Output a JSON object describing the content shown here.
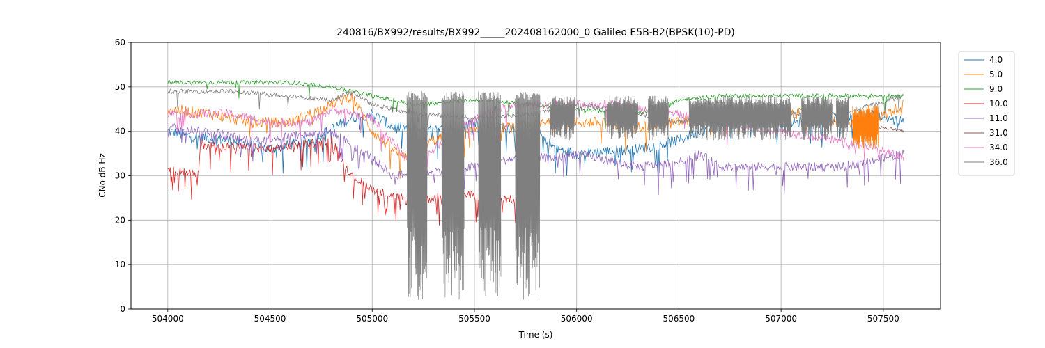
{
  "chart_data": {
    "type": "line",
    "title": "240816/BX992/results/BX992_____202408162000_0 Galileo E5B-B2(BPSK(10)-PD)",
    "xlabel": "Time (s)",
    "ylabel": "CNo dB Hz",
    "xlim": [
      503820,
      507780
    ],
    "ylim": [
      0,
      60
    ],
    "xticks": [
      504000,
      504500,
      505000,
      505500,
      506000,
      506500,
      507000,
      507500
    ],
    "yticks": [
      0,
      10,
      20,
      30,
      40,
      50,
      60
    ],
    "grid": true,
    "legend_position": "upper-right-outside",
    "series": [
      {
        "name": "4.0",
        "color": "#1f77b4",
        "base": [
          [
            504000,
            40
          ],
          [
            504100,
            39
          ],
          [
            504300,
            38
          ],
          [
            504500,
            36
          ],
          [
            504700,
            38
          ],
          [
            504900,
            43
          ],
          [
            505000,
            44
          ],
          [
            505100,
            41
          ],
          [
            505300,
            40
          ],
          [
            505500,
            42
          ],
          [
            505800,
            40
          ],
          [
            505900,
            36
          ],
          [
            506000,
            35
          ],
          [
            506300,
            36
          ],
          [
            506500,
            38
          ],
          [
            506700,
            42
          ],
          [
            507000,
            42
          ],
          [
            507200,
            42
          ],
          [
            507400,
            44
          ],
          [
            507600,
            42
          ]
        ],
        "noise": 2.5,
        "spikeProb": 0.08,
        "spikeDepth": 6
      },
      {
        "name": "5.0",
        "color": "#ff7f0e",
        "base": [
          [
            504000,
            45
          ],
          [
            504200,
            44
          ],
          [
            504400,
            42
          ],
          [
            504600,
            42
          ],
          [
            504800,
            46
          ],
          [
            504900,
            48
          ],
          [
            505000,
            40
          ],
          [
            505150,
            34
          ],
          [
            505300,
            38
          ],
          [
            505500,
            40
          ],
          [
            505700,
            41
          ],
          [
            505900,
            42
          ],
          [
            506100,
            42
          ],
          [
            506300,
            41
          ],
          [
            506500,
            42
          ],
          [
            506800,
            44
          ],
          [
            507100,
            44
          ],
          [
            507400,
            41
          ],
          [
            507600,
            46
          ]
        ],
        "noise": 2.5,
        "spikeProb": 0.05,
        "spikeDepth": 6
      },
      {
        "name": "9.0",
        "color": "#2ca02c",
        "base": [
          [
            504000,
            51
          ],
          [
            504300,
            51
          ],
          [
            504600,
            51
          ],
          [
            504800,
            50
          ],
          [
            505000,
            48
          ],
          [
            505200,
            46
          ],
          [
            505500,
            47
          ],
          [
            505800,
            46
          ],
          [
            506000,
            45
          ],
          [
            506300,
            44
          ],
          [
            506500,
            47
          ],
          [
            506700,
            48
          ],
          [
            507000,
            48
          ],
          [
            507300,
            48
          ],
          [
            507600,
            48
          ]
        ],
        "noise": 0.9,
        "spikeProb": 0.02,
        "spikeDepth": 4
      },
      {
        "name": "10.0",
        "color": "#d62728",
        "base": [
          [
            504000,
            32
          ],
          [
            504150,
            30
          ],
          [
            504160,
            37
          ],
          [
            504500,
            36
          ],
          [
            504800,
            38
          ],
          [
            504900,
            30
          ],
          [
            505000,
            27
          ],
          [
            505200,
            24
          ],
          [
            505400,
            26
          ],
          [
            505600,
            25
          ],
          [
            505800,
            24
          ]
        ],
        "noise": 2.0,
        "spikeProb": 0.18,
        "spikeDepth": 6
      },
      {
        "name": "11.0",
        "color": "#9467bd",
        "base": [
          [
            504000,
            41
          ],
          [
            504200,
            40
          ],
          [
            504400,
            38
          ],
          [
            504600,
            39
          ],
          [
            504800,
            40
          ],
          [
            505000,
            34
          ],
          [
            505100,
            30
          ],
          [
            505300,
            31
          ],
          [
            505500,
            32
          ],
          [
            505700,
            34
          ],
          [
            505900,
            34
          ],
          [
            506000,
            35
          ],
          [
            506300,
            32
          ],
          [
            506500,
            33
          ],
          [
            506600,
            35
          ],
          [
            506700,
            32
          ],
          [
            507000,
            32
          ],
          [
            507300,
            32
          ],
          [
            507600,
            35
          ]
        ],
        "noise": 2.0,
        "spikeProb": 0.12,
        "spikeDepth": 6
      },
      {
        "name": "31.0",
        "color": "#8c564b",
        "base": [
          [
            507480,
            41
          ],
          [
            507600,
            40
          ]
        ],
        "noise": 0.6,
        "spikeProb": 0,
        "spikeDepth": 0
      },
      {
        "name": "34.0",
        "color": "#e377c2",
        "base": [
          [
            504000,
            44
          ],
          [
            504300,
            44
          ],
          [
            504500,
            42
          ],
          [
            504700,
            42
          ],
          [
            504800,
            45
          ],
          [
            505000,
            43
          ],
          [
            505200,
            32
          ],
          [
            505400,
            40
          ],
          [
            505600,
            45
          ],
          [
            505800,
            46
          ],
          [
            506000,
            46
          ],
          [
            506200,
            46
          ],
          [
            507400,
            37
          ],
          [
            507600,
            34
          ]
        ],
        "noise": 2.0,
        "spikeProb": 0.06,
        "spikeDepth": 5
      },
      {
        "name": "36.0",
        "color": "#7f7f7f",
        "base": [
          [
            504000,
            49
          ],
          [
            504300,
            49
          ],
          [
            504600,
            48
          ],
          [
            504800,
            47
          ],
          [
            504900,
            49
          ],
          [
            505000,
            46
          ],
          [
            505200,
            44
          ],
          [
            505500,
            43
          ],
          [
            505800,
            44
          ],
          [
            506000,
            46
          ],
          [
            506200,
            45
          ],
          [
            506500,
            42
          ],
          [
            506700,
            44
          ],
          [
            507000,
            44
          ],
          [
            507300,
            44
          ],
          [
            507600,
            48
          ]
        ],
        "noise": 1.0,
        "spikeProb": 0.03,
        "spikeDepth": 4
      }
    ],
    "band_regions": [
      {
        "series": "36.0",
        "ranges": [
          [
            505170,
            505270
          ],
          [
            505340,
            505450
          ],
          [
            505520,
            505630
          ],
          [
            505700,
            505820
          ]
        ],
        "low": 2,
        "high": 49
      },
      {
        "series": "36.0",
        "ranges": [
          [
            505870,
            505990
          ],
          [
            506150,
            506300
          ],
          [
            506350,
            506450
          ],
          [
            506550,
            507050
          ],
          [
            507100,
            507250
          ],
          [
            507270,
            507330
          ]
        ],
        "low": 38,
        "high": 48
      },
      {
        "series": "5.0",
        "ranges": [
          [
            507350,
            507480
          ]
        ],
        "low": 36,
        "high": 46
      }
    ]
  }
}
